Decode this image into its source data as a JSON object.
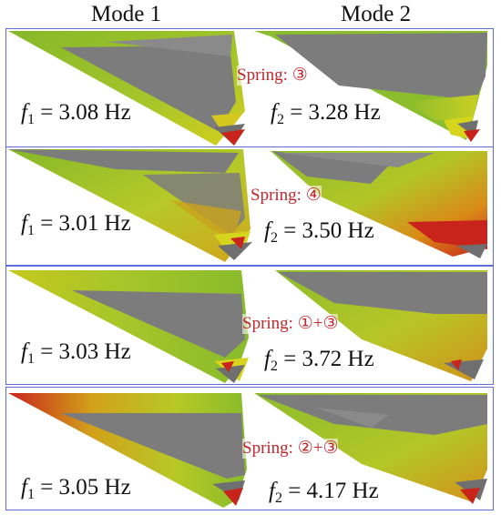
{
  "headers": {
    "col1": "Mode 1",
    "col2": "Mode 2"
  },
  "panels": [
    {
      "mode1": {
        "sym": "f",
        "sub": "1",
        "text": " = 3.08 Hz"
      },
      "mode2": {
        "sym": "f",
        "sub": "2",
        "text": " = 3.28 Hz"
      },
      "spring": "Spring: ③"
    },
    {
      "mode1": {
        "sym": "f",
        "sub": "1",
        "text": " = 3.01 Hz"
      },
      "mode2": {
        "sym": "f",
        "sub": "2",
        "text": " = 3.50 Hz"
      },
      "spring": "Spring: ④"
    },
    {
      "mode1": {
        "sym": "f",
        "sub": "1",
        "text": " = 3.03 Hz"
      },
      "mode2": {
        "sym": "f",
        "sub": "2",
        "text": " = 3.72 Hz"
      },
      "spring": "Spring: ①+③"
    },
    {
      "mode1": {
        "sym": "f",
        "sub": "1",
        "text": " = 3.05 Hz"
      },
      "mode2": {
        "sym": "f",
        "sub": "2",
        "text": " = 4.17 Hz"
      },
      "spring": "Spring: ②+③"
    }
  ],
  "colors": {
    "frame": "#5b6fd6",
    "gray": "#7c7c7c",
    "green": "#8cbd2c",
    "yellow": "#d6d51d",
    "red": "#c8241c",
    "spring_text": "#c1272d"
  }
}
